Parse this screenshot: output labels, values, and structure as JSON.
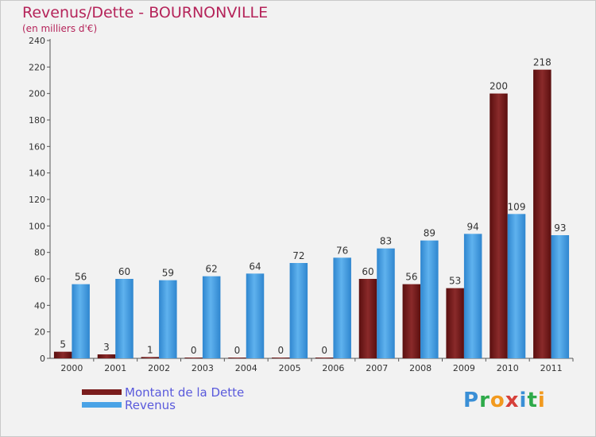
{
  "chart_data": {
    "type": "bar",
    "title": "Revenus/Dette - BOURNONVILLE",
    "subtitle": "(en milliers d'€)",
    "xlabel": "",
    "ylabel": "",
    "ylim": [
      0,
      240
    ],
    "yticks": [
      0,
      20,
      40,
      60,
      80,
      100,
      120,
      140,
      160,
      180,
      200,
      220,
      240
    ],
    "grid": false,
    "categories": [
      "2000",
      "2001",
      "2002",
      "2003",
      "2004",
      "2005",
      "2006",
      "2007",
      "2008",
      "2009",
      "2010",
      "2011"
    ],
    "series": [
      {
        "name": "Montant de la Dette",
        "color": "#7a1c1c",
        "values": [
          5,
          3,
          1,
          0,
          0,
          0,
          0,
          60,
          56,
          53,
          200,
          218
        ]
      },
      {
        "name": "Revenus",
        "color": "#4aa3e6",
        "values": [
          56,
          60,
          59,
          62,
          64,
          72,
          76,
          83,
          89,
          94,
          109,
          93
        ]
      }
    ],
    "legend_position": "bottom-left"
  },
  "logo": {
    "text": "Proxiti",
    "letters": [
      {
        "ch": "P",
        "color": "#3a8fd6"
      },
      {
        "ch": "r",
        "color": "#2eaa4a"
      },
      {
        "ch": "o",
        "color": "#f29a1f"
      },
      {
        "ch": "x",
        "color": "#d6403a"
      },
      {
        "ch": "i",
        "color": "#3a8fd6"
      },
      {
        "ch": "t",
        "color": "#2eaa4a"
      },
      {
        "ch": "i",
        "color": "#f29a1f"
      }
    ]
  }
}
